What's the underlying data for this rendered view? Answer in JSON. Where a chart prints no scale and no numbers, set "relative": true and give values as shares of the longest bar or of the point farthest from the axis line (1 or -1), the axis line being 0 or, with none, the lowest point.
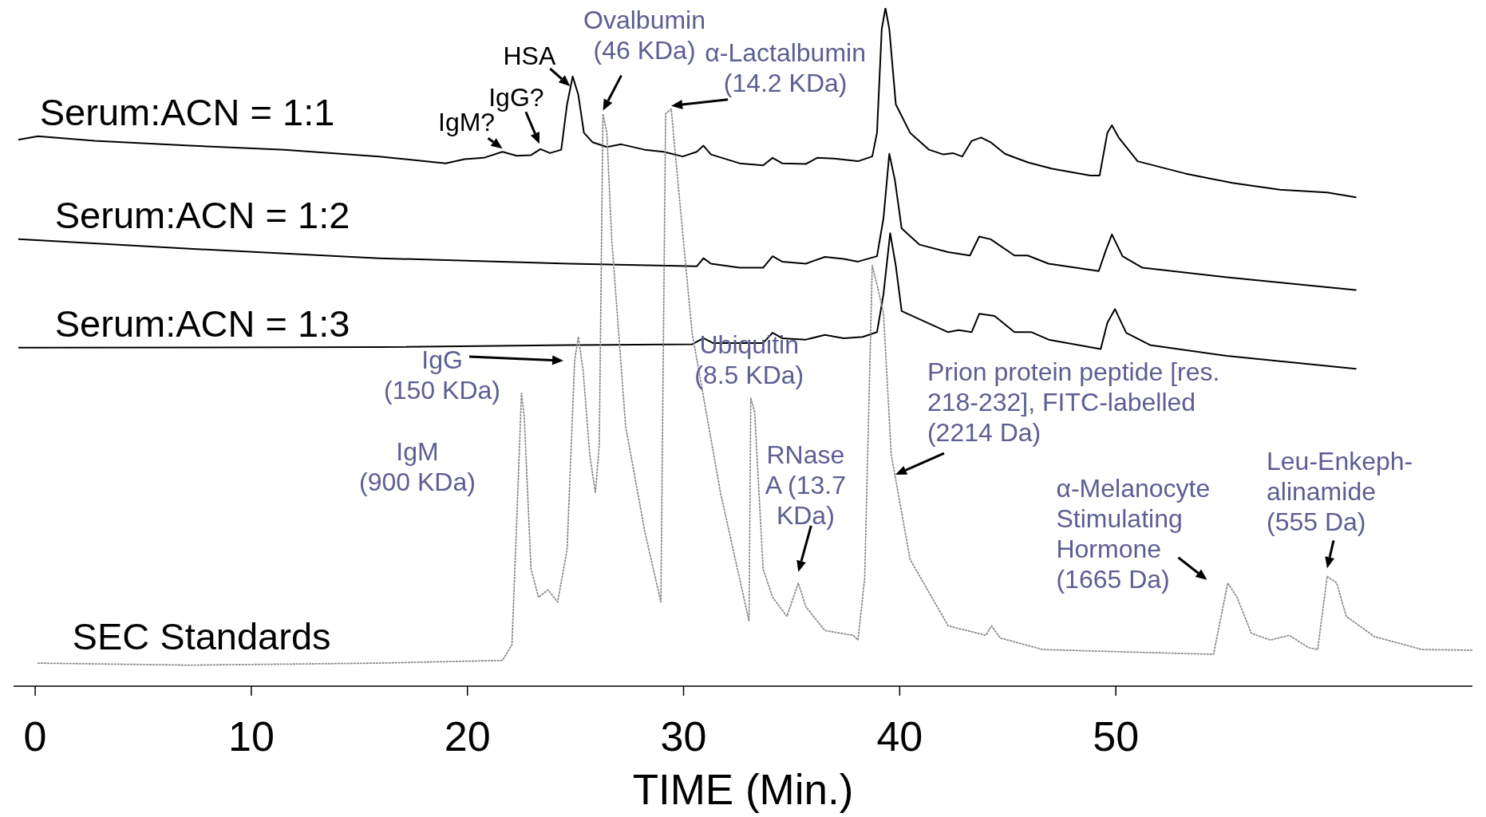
{
  "chart_data": {
    "type": "line",
    "relative": true,
    "xlabel": "TIME (Min.)",
    "xlim": [
      -1,
      66.5
    ],
    "xticks": [
      0,
      10,
      20,
      30,
      40,
      50
    ],
    "series": [
      {
        "name": "Serum:ACN = 1:1",
        "color": "#000000",
        "x": [
          -0.75,
          0.13,
          2.76,
          7.15,
          11.54,
          15.92,
          18.99,
          19.87,
          20.75,
          21.62,
          22.28,
          22.94,
          23.38,
          23.82,
          24.34,
          24.61,
          24.87,
          25.13,
          25.39,
          25.79,
          26.45,
          27.11,
          28.2,
          29.08,
          29.96,
          30.61,
          30.92,
          31.27,
          32.59,
          33.68,
          34.12,
          34.56,
          35.66,
          36.18,
          36.97,
          38.07,
          38.73,
          38.95,
          39.17,
          39.34,
          39.52,
          39.82,
          40.48,
          41.36,
          42.02,
          42.46,
          42.89,
          43.33,
          43.77,
          44.21,
          44.87,
          45.53,
          45.96,
          47.06,
          48.82,
          49.25,
          49.61,
          49.82,
          50.13,
          51.01,
          53.2,
          55.39,
          57.59,
          59.78,
          61.1
        ],
        "values": [
          0.806,
          0.811,
          0.804,
          0.797,
          0.791,
          0.781,
          0.771,
          0.777,
          0.779,
          0.788,
          0.782,
          0.783,
          0.792,
          0.786,
          0.791,
          0.858,
          0.899,
          0.872,
          0.816,
          0.802,
          0.795,
          0.799,
          0.791,
          0.788,
          0.781,
          0.788,
          0.797,
          0.784,
          0.771,
          0.768,
          0.779,
          0.771,
          0.77,
          0.779,
          0.778,
          0.774,
          0.781,
          0.816,
          0.969,
          1,
          0.969,
          0.858,
          0.816,
          0.791,
          0.784,
          0.786,
          0.781,
          0.804,
          0.809,
          0.802,
          0.785,
          0.777,
          0.772,
          0.763,
          0.753,
          0.753,
          0.816,
          0.827,
          0.809,
          0.774,
          0.756,
          0.742,
          0.732,
          0.728,
          0.721
        ]
      },
      {
        "name": "Serum:ACN = 1:2",
        "color": "#000000",
        "x": [
          -0.75,
          7.15,
          15.92,
          24.69,
          30.61,
          30.92,
          31.27,
          32.59,
          33.68,
          34.12,
          34.56,
          35.66,
          36.54,
          37.41,
          38.07,
          38.95,
          39.25,
          39.52,
          39.78,
          40.09,
          40.92,
          42.24,
          43.25,
          43.68,
          44.21,
          45.31,
          45.92,
          46.89,
          49.21,
          49.52,
          49.82,
          50.31,
          51.23,
          55.13,
          61.1
        ],
        "values": [
          0.659,
          0.645,
          0.631,
          0.623,
          0.619,
          0.631,
          0.623,
          0.617,
          0.617,
          0.634,
          0.626,
          0.623,
          0.633,
          0.63,
          0.626,
          0.634,
          0.69,
          0.785,
          0.746,
          0.675,
          0.651,
          0.64,
          0.635,
          0.663,
          0.659,
          0.635,
          0.635,
          0.623,
          0.612,
          0.641,
          0.666,
          0.634,
          0.617,
          0.603,
          0.584
        ]
      },
      {
        "name": "Serum:ACN = 1:3",
        "color": "#000000",
        "x": [
          -0.75,
          15.92,
          24.69,
          30.39,
          30.92,
          31.36,
          33.68,
          34.12,
          34.56,
          35.66,
          36.54,
          37.41,
          38.29,
          38.95,
          39.25,
          39.56,
          39.82,
          40.09,
          42.24,
          42.72,
          43.33,
          43.68,
          44.39,
          45.31,
          46.1,
          46.89,
          49.3,
          49.61,
          49.96,
          50.48,
          51.58,
          55.13,
          61.1
        ],
        "values": [
          0.499,
          0.5,
          0.503,
          0.504,
          0.513,
          0.506,
          0.506,
          0.521,
          0.513,
          0.511,
          0.518,
          0.513,
          0.515,
          0.522,
          0.578,
          0.668,
          0.62,
          0.553,
          0.522,
          0.525,
          0.522,
          0.549,
          0.546,
          0.522,
          0.522,
          0.511,
          0.497,
          0.536,
          0.556,
          0.521,
          0.503,
          0.487,
          0.468
        ]
      },
      {
        "name": "SEC Standards",
        "color": "#8a8a8a",
        "line_style": "dotted",
        "x": [
          0.13,
          7.15,
          15.92,
          21.62,
          22.06,
          22.28,
          22.5,
          22.63,
          22.94,
          23.29,
          23.73,
          24.17,
          24.61,
          24.96,
          25.13,
          25.35,
          25.66,
          25.92,
          26.1,
          26.27,
          26.45,
          26.67,
          27.32,
          28.2,
          28.95,
          29.17,
          29.43,
          29.61,
          30.39,
          31.71,
          33.03,
          33.11,
          33.29,
          33.68,
          34.12,
          34.78,
          35.31,
          35.66,
          36.54,
          37.85,
          38.07,
          38.38,
          38.73,
          38.95,
          39.25,
          39.61,
          40.48,
          42.24,
          43.99,
          44.25,
          44.65,
          46.62,
          51.01,
          54.52,
          55.18,
          55.61,
          56.27,
          57.15,
          58.03,
          58.9,
          59.34,
          59.78,
          60.22,
          60.66,
          61.97,
          64.17,
          66.5
        ],
        "values": [
          0.034,
          0.031,
          0.034,
          0.038,
          0.061,
          0.243,
          0.432,
          0.397,
          0.173,
          0.131,
          0.142,
          0.124,
          0.201,
          0.48,
          0.515,
          0.466,
          0.341,
          0.285,
          0.355,
          0.844,
          0.816,
          0.662,
          0.383,
          0.229,
          0.124,
          0.844,
          0.851,
          0.788,
          0.522,
          0.285,
          0.096,
          0.425,
          0.404,
          0.173,
          0.131,
          0.103,
          0.152,
          0.117,
          0.082,
          0.075,
          0.068,
          0.159,
          0.62,
          0.592,
          0.55,
          0.341,
          0.187,
          0.089,
          0.075,
          0.089,
          0.071,
          0.054,
          0.05,
          0.047,
          0.152,
          0.131,
          0.078,
          0.068,
          0.075,
          0.057,
          0.054,
          0.162,
          0.152,
          0.103,
          0.073,
          0.054,
          0.053
        ]
      }
    ],
    "annotations": [
      {
        "text": "IgM?",
        "x": 21.62,
        "y": 0.788
      },
      {
        "text": "IgG?",
        "x": 23.33,
        "y": 0.795
      },
      {
        "text": "HSA",
        "x": 24.75,
        "y": 0.88
      },
      {
        "text": "Ovalbumin\n(46 KDa)",
        "x": 26.27,
        "y": 0.844
      },
      {
        "text": "α-Lactalbumin\n(14.2 KDa)",
        "x": 29.43,
        "y": 0.851
      },
      {
        "text": "IgG\n(150 KDa)",
        "x": 24.96,
        "y": 0.48
      },
      "IgM\n(900 KDa)",
      {
        "text": "Ubiquitin\n(8.5 KDa)",
        "x": 33.11,
        "y": 0.425
      },
      {
        "text": "RNase\nA (13.7\nKDa)",
        "x": 35.31,
        "y": 0.152
      },
      {
        "text": "Prion protein peptide [res.\n218-232], FITC-labelled\n(2214 Da)",
        "x": 39.8,
        "y": 0.307
      },
      {
        "text": "α-Melanocyte\nStimulating\nHormone\n(1665 Da)",
        "x": 55.18,
        "y": 0.152
      },
      {
        "text": "Leu-Enkeph-\nalinamide\n(555 Da)",
        "x": 59.78,
        "y": 0.162
      }
    ]
  }
}
